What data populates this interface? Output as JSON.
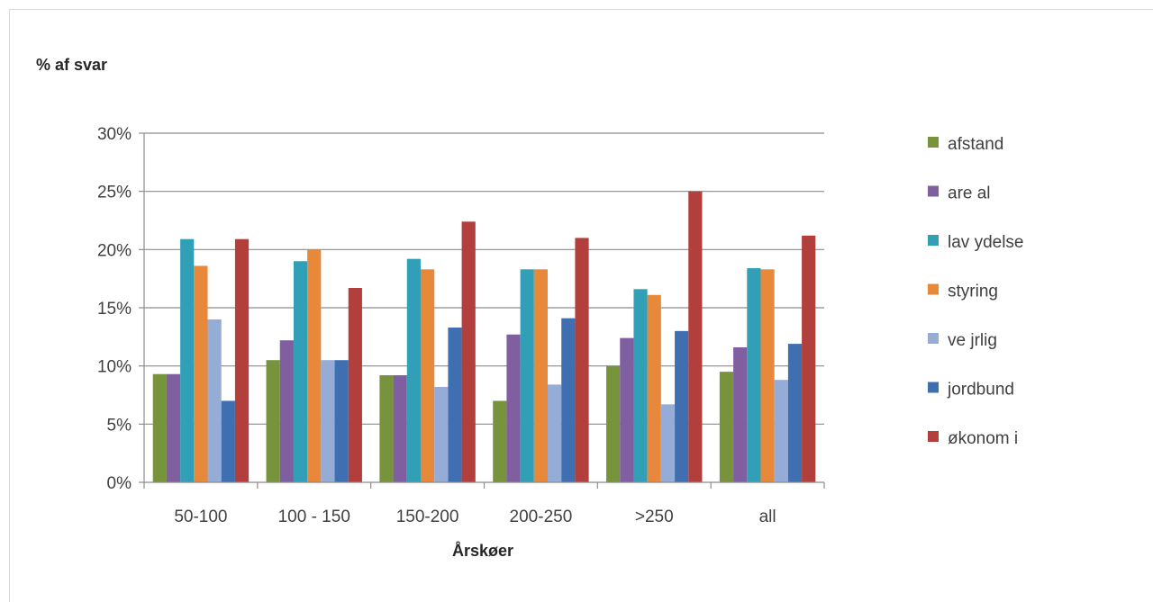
{
  "chart_data": {
    "type": "bar",
    "ylabel": "% af svar",
    "xlabel": "Årskøer",
    "ylim": [
      0,
      30
    ],
    "yticks": [
      "0%",
      "5%",
      "10%",
      "15%",
      "20%",
      "25%",
      "30%"
    ],
    "grid": true,
    "legend_position": "right",
    "categories": [
      "50-100",
      "100 - 150",
      "150-200",
      "200-250",
      ">250",
      "all"
    ],
    "series": [
      {
        "name": "afstand",
        "color": "#77933c",
        "values": [
          9.3,
          10.5,
          9.2,
          7.0,
          10.0,
          9.5
        ]
      },
      {
        "name": "are al",
        "color": "#7f5fa0",
        "values": [
          9.3,
          12.2,
          9.2,
          12.7,
          12.4,
          11.6
        ]
      },
      {
        "name": "lav ydelse",
        "color": "#31a0b7",
        "values": [
          20.9,
          19.0,
          19.2,
          18.3,
          16.6,
          18.4
        ]
      },
      {
        "name": "styring",
        "color": "#e8883a",
        "values": [
          18.6,
          20.0,
          18.3,
          18.3,
          16.1,
          18.3
        ]
      },
      {
        "name": "ve jrlig",
        "color": "#95acd6",
        "values": [
          14.0,
          10.5,
          8.2,
          8.4,
          6.7,
          8.8
        ]
      },
      {
        "name": "jordbund",
        "color": "#3f6fb0",
        "values": [
          7.0,
          10.5,
          13.3,
          14.1,
          13.0,
          11.9
        ]
      },
      {
        "name": "økonom i",
        "color": "#b23f3c",
        "values": [
          20.9,
          16.7,
          22.4,
          21.0,
          25.0,
          21.2
        ]
      }
    ]
  }
}
